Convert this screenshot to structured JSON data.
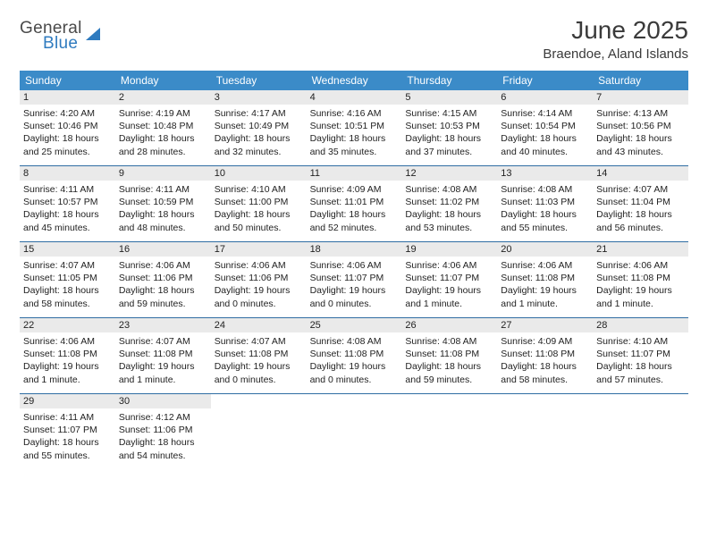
{
  "brand": {
    "word1": "General",
    "word2": "Blue"
  },
  "title": "June 2025",
  "location": "Braendoe, Aland Islands",
  "colors": {
    "header_bg": "#3b8bc8",
    "header_text": "#ffffff",
    "daynum_bg": "#eaeaea",
    "week_border": "#2f6da3",
    "brand_blue": "#2f7bbf",
    "text_dark": "#3a3a3a"
  },
  "day_labels": [
    "Sunday",
    "Monday",
    "Tuesday",
    "Wednesday",
    "Thursday",
    "Friday",
    "Saturday"
  ],
  "weeks": [
    [
      {
        "n": "1",
        "sr": "Sunrise: 4:20 AM",
        "ss": "Sunset: 10:46 PM",
        "dl1": "Daylight: 18 hours",
        "dl2": "and 25 minutes."
      },
      {
        "n": "2",
        "sr": "Sunrise: 4:19 AM",
        "ss": "Sunset: 10:48 PM",
        "dl1": "Daylight: 18 hours",
        "dl2": "and 28 minutes."
      },
      {
        "n": "3",
        "sr": "Sunrise: 4:17 AM",
        "ss": "Sunset: 10:49 PM",
        "dl1": "Daylight: 18 hours",
        "dl2": "and 32 minutes."
      },
      {
        "n": "4",
        "sr": "Sunrise: 4:16 AM",
        "ss": "Sunset: 10:51 PM",
        "dl1": "Daylight: 18 hours",
        "dl2": "and 35 minutes."
      },
      {
        "n": "5",
        "sr": "Sunrise: 4:15 AM",
        "ss": "Sunset: 10:53 PM",
        "dl1": "Daylight: 18 hours",
        "dl2": "and 37 minutes."
      },
      {
        "n": "6",
        "sr": "Sunrise: 4:14 AM",
        "ss": "Sunset: 10:54 PM",
        "dl1": "Daylight: 18 hours",
        "dl2": "and 40 minutes."
      },
      {
        "n": "7",
        "sr": "Sunrise: 4:13 AM",
        "ss": "Sunset: 10:56 PM",
        "dl1": "Daylight: 18 hours",
        "dl2": "and 43 minutes."
      }
    ],
    [
      {
        "n": "8",
        "sr": "Sunrise: 4:11 AM",
        "ss": "Sunset: 10:57 PM",
        "dl1": "Daylight: 18 hours",
        "dl2": "and 45 minutes."
      },
      {
        "n": "9",
        "sr": "Sunrise: 4:11 AM",
        "ss": "Sunset: 10:59 PM",
        "dl1": "Daylight: 18 hours",
        "dl2": "and 48 minutes."
      },
      {
        "n": "10",
        "sr": "Sunrise: 4:10 AM",
        "ss": "Sunset: 11:00 PM",
        "dl1": "Daylight: 18 hours",
        "dl2": "and 50 minutes."
      },
      {
        "n": "11",
        "sr": "Sunrise: 4:09 AM",
        "ss": "Sunset: 11:01 PM",
        "dl1": "Daylight: 18 hours",
        "dl2": "and 52 minutes."
      },
      {
        "n": "12",
        "sr": "Sunrise: 4:08 AM",
        "ss": "Sunset: 11:02 PM",
        "dl1": "Daylight: 18 hours",
        "dl2": "and 53 minutes."
      },
      {
        "n": "13",
        "sr": "Sunrise: 4:08 AM",
        "ss": "Sunset: 11:03 PM",
        "dl1": "Daylight: 18 hours",
        "dl2": "and 55 minutes."
      },
      {
        "n": "14",
        "sr": "Sunrise: 4:07 AM",
        "ss": "Sunset: 11:04 PM",
        "dl1": "Daylight: 18 hours",
        "dl2": "and 56 minutes."
      }
    ],
    [
      {
        "n": "15",
        "sr": "Sunrise: 4:07 AM",
        "ss": "Sunset: 11:05 PM",
        "dl1": "Daylight: 18 hours",
        "dl2": "and 58 minutes."
      },
      {
        "n": "16",
        "sr": "Sunrise: 4:06 AM",
        "ss": "Sunset: 11:06 PM",
        "dl1": "Daylight: 18 hours",
        "dl2": "and 59 minutes."
      },
      {
        "n": "17",
        "sr": "Sunrise: 4:06 AM",
        "ss": "Sunset: 11:06 PM",
        "dl1": "Daylight: 19 hours",
        "dl2": "and 0 minutes."
      },
      {
        "n": "18",
        "sr": "Sunrise: 4:06 AM",
        "ss": "Sunset: 11:07 PM",
        "dl1": "Daylight: 19 hours",
        "dl2": "and 0 minutes."
      },
      {
        "n": "19",
        "sr": "Sunrise: 4:06 AM",
        "ss": "Sunset: 11:07 PM",
        "dl1": "Daylight: 19 hours",
        "dl2": "and 1 minute."
      },
      {
        "n": "20",
        "sr": "Sunrise: 4:06 AM",
        "ss": "Sunset: 11:08 PM",
        "dl1": "Daylight: 19 hours",
        "dl2": "and 1 minute."
      },
      {
        "n": "21",
        "sr": "Sunrise: 4:06 AM",
        "ss": "Sunset: 11:08 PM",
        "dl1": "Daylight: 19 hours",
        "dl2": "and 1 minute."
      }
    ],
    [
      {
        "n": "22",
        "sr": "Sunrise: 4:06 AM",
        "ss": "Sunset: 11:08 PM",
        "dl1": "Daylight: 19 hours",
        "dl2": "and 1 minute."
      },
      {
        "n": "23",
        "sr": "Sunrise: 4:07 AM",
        "ss": "Sunset: 11:08 PM",
        "dl1": "Daylight: 19 hours",
        "dl2": "and 1 minute."
      },
      {
        "n": "24",
        "sr": "Sunrise: 4:07 AM",
        "ss": "Sunset: 11:08 PM",
        "dl1": "Daylight: 19 hours",
        "dl2": "and 0 minutes."
      },
      {
        "n": "25",
        "sr": "Sunrise: 4:08 AM",
        "ss": "Sunset: 11:08 PM",
        "dl1": "Daylight: 19 hours",
        "dl2": "and 0 minutes."
      },
      {
        "n": "26",
        "sr": "Sunrise: 4:08 AM",
        "ss": "Sunset: 11:08 PM",
        "dl1": "Daylight: 18 hours",
        "dl2": "and 59 minutes."
      },
      {
        "n": "27",
        "sr": "Sunrise: 4:09 AM",
        "ss": "Sunset: 11:08 PM",
        "dl1": "Daylight: 18 hours",
        "dl2": "and 58 minutes."
      },
      {
        "n": "28",
        "sr": "Sunrise: 4:10 AM",
        "ss": "Sunset: 11:07 PM",
        "dl1": "Daylight: 18 hours",
        "dl2": "and 57 minutes."
      }
    ],
    [
      {
        "n": "29",
        "sr": "Sunrise: 4:11 AM",
        "ss": "Sunset: 11:07 PM",
        "dl1": "Daylight: 18 hours",
        "dl2": "and 55 minutes."
      },
      {
        "n": "30",
        "sr": "Sunrise: 4:12 AM",
        "ss": "Sunset: 11:06 PM",
        "dl1": "Daylight: 18 hours",
        "dl2": "and 54 minutes."
      },
      null,
      null,
      null,
      null,
      null
    ]
  ]
}
